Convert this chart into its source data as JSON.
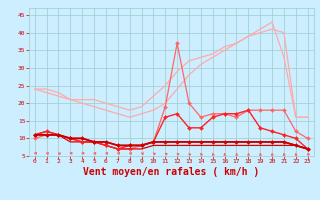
{
  "x": [
    0,
    1,
    2,
    3,
    4,
    5,
    6,
    7,
    8,
    9,
    10,
    11,
    12,
    13,
    14,
    15,
    16,
    17,
    18,
    19,
    20,
    21,
    22,
    23
  ],
  "series": [
    {
      "name": "lightpink1",
      "color": "#ffaaaa",
      "lw": 0.9,
      "marker": null,
      "zorder": 2,
      "y": [
        24,
        24,
        23,
        21,
        21,
        21,
        20,
        19,
        18,
        19,
        22,
        25,
        29,
        32,
        33,
        34,
        36,
        37,
        39,
        41,
        43,
        33,
        16,
        16
      ]
    },
    {
      "name": "lightpink2",
      "color": "#ffaaaa",
      "lw": 0.9,
      "marker": null,
      "zorder": 2,
      "y": [
        24,
        23,
        22,
        21,
        20,
        19,
        18,
        17,
        16,
        17,
        18,
        20,
        24,
        28,
        31,
        33,
        35,
        37,
        39,
        40,
        41,
        40,
        16,
        16
      ]
    },
    {
      "name": "medred_markers",
      "color": "#ff6666",
      "lw": 0.9,
      "marker": "D",
      "markersize": 2.0,
      "zorder": 3,
      "y": [
        10,
        11,
        11,
        10,
        9,
        9,
        8,
        7,
        7,
        8,
        9,
        19,
        37,
        20,
        16,
        17,
        17,
        16,
        18,
        18,
        18,
        18,
        12,
        10
      ]
    },
    {
      "name": "red_markers1",
      "color": "#ff2222",
      "lw": 1.0,
      "marker": "D",
      "markersize": 2.0,
      "zorder": 4,
      "y": [
        11,
        12,
        11,
        10,
        9,
        9,
        8,
        7,
        8,
        8,
        9,
        16,
        17,
        13,
        13,
        16,
        17,
        17,
        18,
        13,
        12,
        11,
        10,
        7
      ]
    },
    {
      "name": "darkred_flat",
      "color": "#cc0000",
      "lw": 1.3,
      "marker": "D",
      "markersize": 2.0,
      "zorder": 5,
      "y": [
        11,
        11,
        11,
        10,
        10,
        9,
        9,
        8,
        8,
        8,
        9,
        9,
        9,
        9,
        9,
        9,
        9,
        9,
        9,
        9,
        9,
        9,
        8,
        7
      ]
    },
    {
      "name": "darkred_flat2",
      "color": "#cc0000",
      "lw": 1.0,
      "marker": null,
      "zorder": 4,
      "y": [
        11,
        11,
        11,
        10,
        10,
        9,
        9,
        8,
        8,
        8,
        9,
        9,
        9,
        9,
        9,
        9,
        9,
        9,
        9,
        9,
        9,
        9,
        8,
        7
      ]
    },
    {
      "name": "red_flat_bottom",
      "color": "#dd0000",
      "lw": 0.9,
      "marker": null,
      "zorder": 3,
      "y": [
        11,
        12,
        11,
        9,
        9,
        9,
        8,
        7,
        7,
        7,
        8,
        8,
        8,
        8,
        8,
        8,
        8,
        8,
        8,
        8,
        8,
        8,
        8,
        7
      ]
    }
  ],
  "wind_arrows": {
    "x": [
      0,
      1,
      2,
      3,
      4,
      5,
      6,
      7,
      8,
      9,
      10,
      11,
      12,
      13,
      14,
      15,
      16,
      17,
      18,
      19,
      20,
      21,
      22,
      23
    ],
    "angles_deg": [
      270,
      250,
      240,
      270,
      270,
      260,
      260,
      260,
      250,
      240,
      230,
      220,
      210,
      200,
      195,
      190,
      185,
      185,
      185,
      185,
      185,
      185,
      185,
      200
    ],
    "color": "#ff6666"
  },
  "xlabel": "Vent moyen/en rafales ( km/h )",
  "xlabel_color": "#cc0000",
  "xlabel_fontsize": 7,
  "bg_color": "#cceeff",
  "grid_color": "#99cccc",
  "tick_color": "#cc0000",
  "axis_label_color": "#cc0000",
  "ylim": [
    5,
    47
  ],
  "xlim": [
    -0.5,
    23.5
  ],
  "yticks": [
    5,
    10,
    15,
    20,
    25,
    30,
    35,
    40,
    45
  ],
  "xticks": [
    0,
    1,
    2,
    3,
    4,
    5,
    6,
    7,
    8,
    9,
    10,
    11,
    12,
    13,
    14,
    15,
    16,
    17,
    18,
    19,
    20,
    21,
    22,
    23
  ]
}
